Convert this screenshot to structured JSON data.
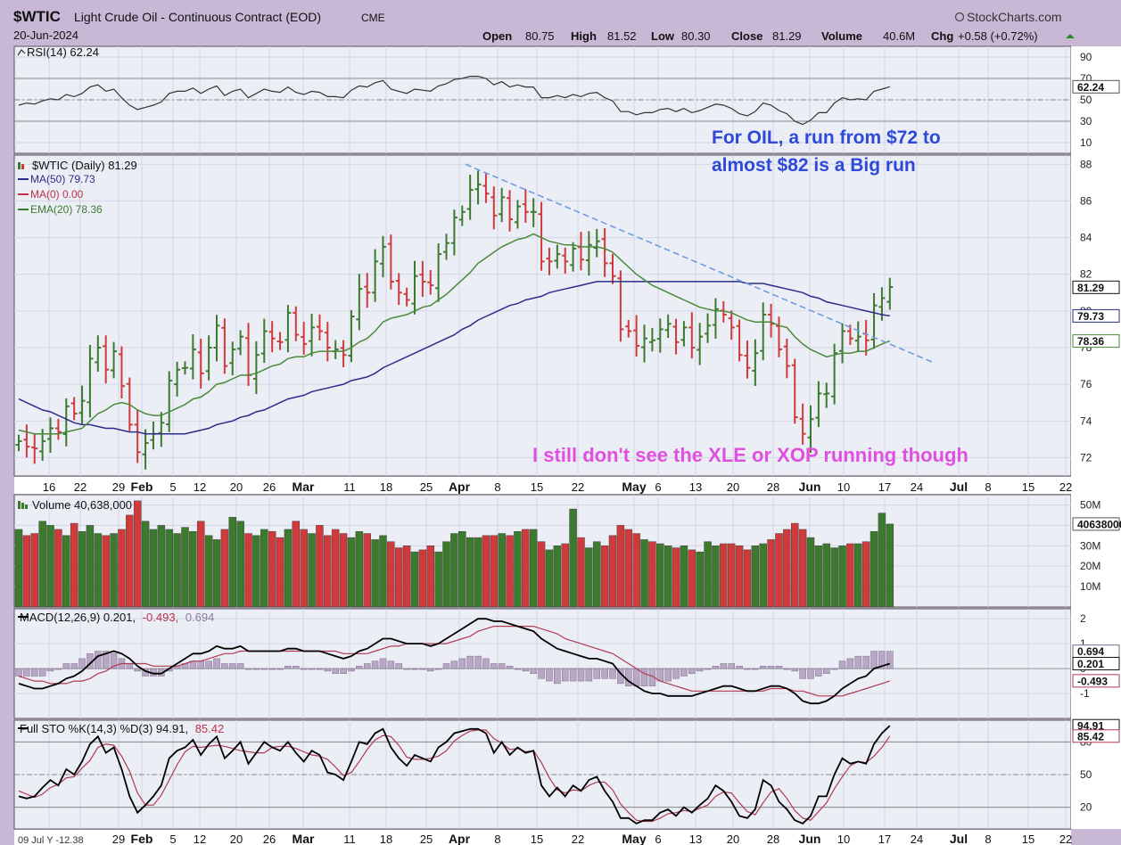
{
  "header": {
    "symbol": "$WTIC",
    "description": "Light Crude Oil - Continuous Contract (EOD)",
    "exchange": "CME",
    "date": "20-Jun-2024",
    "brand": "StockCharts.com",
    "open_label": "Open",
    "open": "80.75",
    "high_label": "High",
    "high": "81.52",
    "low_label": "Low",
    "low": "80.30",
    "close_label": "Close",
    "close": "81.29",
    "volume_label": "Volume",
    "volume": "40.6M",
    "chg_label": "Chg",
    "chg": "+0.58 (+0.72%)"
  },
  "colors": {
    "up": "#3c7a2e",
    "down": "#d03a3a",
    "ma50": "#2a2e8a",
    "ema20": "#4a8a3a",
    "rsi": "#333333",
    "macd": "#000000",
    "signal": "#b03a50",
    "hist": "#b8a8c6",
    "trend": "#6f9be0",
    "annot1": "#2e48d8",
    "annot2": "#e050e0",
    "frame": "#c9b7d6"
  },
  "annotations": {
    "line1": "For OIL, a run from $72 to",
    "line2": "almost $82 is a Big run",
    "line3": "I still don't see the XLE or XOP running though"
  },
  "panels": {
    "rsi": {
      "label": "RSI(14) 62.24",
      "ticks": [
        "90",
        "70",
        "50",
        "30",
        "10"
      ],
      "last": "62.24"
    },
    "price": {
      "label": "$WTIC (Daily) 81.29",
      "legend": [
        "MA(50) 79.73",
        "MA(0) 0.00",
        "EMA(20) 78.36"
      ],
      "ticks": [
        "88",
        "86",
        "84",
        "82",
        "80",
        "78",
        "76",
        "74",
        "72"
      ],
      "last_close": "81.29",
      "last_ma50": "79.73",
      "last_ema20": "78.36"
    },
    "volume": {
      "label": "Volume 40,638,000",
      "ticks": [
        "50M",
        "40M",
        "30M",
        "20M",
        "10M"
      ],
      "last": "40638000"
    },
    "macd": {
      "label_main": "MACD(12,26,9) 0.201,",
      "label_signal": "-0.493,",
      "label_hist": "0.694",
      "ticks": [
        "2",
        "1",
        "0",
        "-1"
      ],
      "last_hist": "0.694",
      "last_macd": "0.201",
      "last_signal": "-0.493"
    },
    "sto": {
      "label_main": "Full STO %K(14,3) %D(3) 94.91,",
      "label_d": "85.42",
      "ticks": [
        "80",
        "50",
        "20"
      ],
      "last_k": "94.91",
      "last_d": "85.42"
    }
  },
  "xaxis": {
    "labels": [
      "16",
      "22",
      "29",
      "Feb",
      "5",
      "12",
      "20",
      "26",
      "Mar",
      "11",
      "18",
      "25",
      "Apr",
      "8",
      "15",
      "22",
      "May",
      "6",
      "13",
      "20",
      "28",
      "Jun",
      "10",
      "17",
      "24",
      "Jul",
      "8",
      "15",
      "22"
    ],
    "bottom_left": "09 Jul Y -12.38"
  },
  "chart_data": {
    "type": "candlestick-ohlc",
    "symbol": "$WTIC",
    "price_ylim": [
      71,
      88.5
    ],
    "rsi_ylim": [
      0,
      100
    ],
    "macd_ylim": [
      -2,
      2.4
    ],
    "sto_ylim": [
      0,
      100
    ],
    "volume_ylim_millions": [
      0,
      55
    ],
    "x": [
      "01-11",
      "01-12",
      "01-16",
      "01-17",
      "01-18",
      "01-19",
      "01-22",
      "01-23",
      "01-24",
      "01-25",
      "01-26",
      "01-29",
      "01-30",
      "01-31",
      "02-01",
      "02-02",
      "02-05",
      "02-06",
      "02-07",
      "02-08",
      "02-09",
      "02-12",
      "02-13",
      "02-14",
      "02-15",
      "02-16",
      "02-20",
      "02-21",
      "02-22",
      "02-23",
      "02-26",
      "02-27",
      "02-28",
      "02-29",
      "03-01",
      "03-04",
      "03-05",
      "03-06",
      "03-07",
      "03-08",
      "03-11",
      "03-12",
      "03-13",
      "03-14",
      "03-15",
      "03-18",
      "03-19",
      "03-20",
      "03-21",
      "03-22",
      "03-25",
      "03-26",
      "03-27",
      "03-28",
      "04-01",
      "04-02",
      "04-03",
      "04-04",
      "04-05",
      "04-08",
      "04-09",
      "04-10",
      "04-11",
      "04-12",
      "04-15",
      "04-16",
      "04-17",
      "04-18",
      "04-19",
      "04-22",
      "04-23",
      "04-24",
      "04-25",
      "04-26",
      "04-29",
      "04-30",
      "05-01",
      "05-02",
      "05-03",
      "05-06",
      "05-07",
      "05-08",
      "05-09",
      "05-10",
      "05-13",
      "05-14",
      "05-15",
      "05-16",
      "05-17",
      "05-20",
      "05-21",
      "05-22",
      "05-23",
      "05-24",
      "05-28",
      "05-29",
      "05-30",
      "05-31",
      "06-03",
      "06-04",
      "06-05",
      "06-06",
      "06-07",
      "06-10",
      "06-11",
      "06-12",
      "06-13",
      "06-14",
      "06-17",
      "06-18",
      "06-20"
    ],
    "close": [
      72.9,
      72.6,
      72.5,
      72.9,
      73.6,
      73.4,
      74.8,
      74.4,
      75.1,
      77.4,
      78.0,
      76.8,
      77.8,
      75.9,
      73.8,
      72.3,
      72.8,
      73.3,
      73.9,
      76.2,
      76.8,
      76.9,
      77.9,
      76.6,
      78.0,
      79.2,
      77.0,
      77.9,
      78.6,
      76.5,
      77.6,
      78.9,
      78.5,
      78.3,
      79.9,
      78.7,
      78.2,
      79.1,
      78.9,
      78.0,
      77.9,
      77.6,
      79.7,
      81.2,
      81.0,
      82.7,
      83.5,
      81.6,
      81.0,
      80.6,
      81.9,
      81.6,
      81.4,
      83.1,
      83.7,
      85.1,
      85.4,
      86.6,
      86.9,
      86.4,
      85.2,
      86.2,
      85.0,
      85.7,
      85.4,
      85.4,
      82.7,
      82.7,
      83.1,
      82.7,
      83.4,
      82.8,
      83.6,
      83.8,
      82.6,
      81.9,
      79.0,
      78.9,
      78.1,
      78.5,
      78.4,
      79.0,
      79.3,
      78.3,
      79.1,
      78.0,
      78.6,
      79.2,
      80.1,
      79.8,
      79.1,
      77.6,
      76.9,
      77.7,
      79.8,
      79.3,
      77.9,
      77.0,
      74.2,
      73.3,
      74.1,
      75.5,
      75.5,
      77.7,
      78.9,
      78.5,
      78.6,
      78.4,
      80.3,
      80.7,
      81.3
    ],
    "ma50": [
      75.2,
      75.0,
      74.8,
      74.6,
      74.5,
      74.3,
      74.1,
      73.9,
      73.8,
      73.8,
      73.7,
      73.6,
      73.6,
      73.5,
      73.4,
      73.4,
      73.3,
      73.3,
      73.3,
      73.3,
      73.3,
      73.3,
      73.4,
      73.5,
      73.6,
      73.8,
      73.9,
      74.0,
      74.2,
      74.3,
      74.5,
      74.6,
      74.8,
      75.0,
      75.2,
      75.3,
      75.4,
      75.6,
      75.7,
      75.8,
      75.9,
      76.0,
      76.2,
      76.3,
      76.4,
      76.6,
      76.9,
      77.1,
      77.3,
      77.5,
      77.7,
      77.9,
      78.1,
      78.3,
      78.5,
      78.7,
      79.0,
      79.2,
      79.5,
      79.7,
      79.9,
      80.1,
      80.3,
      80.4,
      80.6,
      80.7,
      80.8,
      81.0,
      81.1,
      81.2,
      81.3,
      81.4,
      81.5,
      81.6,
      81.6,
      81.6,
      81.6,
      81.6,
      81.6,
      81.6,
      81.6,
      81.6,
      81.6,
      81.6,
      81.6,
      81.6,
      81.6,
      81.6,
      81.6,
      81.6,
      81.6,
      81.6,
      81.5,
      81.5,
      81.5,
      81.4,
      81.3,
      81.2,
      81.1,
      81.0,
      80.8,
      80.7,
      80.5,
      80.4,
      80.3,
      80.2,
      80.1,
      80.0,
      79.9,
      79.8,
      79.73
    ],
    "ema20": [
      73.5,
      73.4,
      73.3,
      73.3,
      73.3,
      73.3,
      73.4,
      73.5,
      73.6,
      74.0,
      74.4,
      74.6,
      74.9,
      75.0,
      74.9,
      74.6,
      74.4,
      74.3,
      74.3,
      74.5,
      74.7,
      74.9,
      75.2,
      75.3,
      75.6,
      76.0,
      76.1,
      76.3,
      76.5,
      76.5,
      76.6,
      76.8,
      77.0,
      77.1,
      77.4,
      77.5,
      77.5,
      77.7,
      77.8,
      77.8,
      77.8,
      77.8,
      78.0,
      78.3,
      78.5,
      78.9,
      79.4,
      79.6,
      79.7,
      79.8,
      80.0,
      80.2,
      80.3,
      80.6,
      80.9,
      81.3,
      81.7,
      82.1,
      82.6,
      82.9,
      83.2,
      83.5,
      83.7,
      83.9,
      84.0,
      84.2,
      84.0,
      83.8,
      83.7,
      83.6,
      83.6,
      83.5,
      83.5,
      83.5,
      83.4,
      83.2,
      82.8,
      82.4,
      82.0,
      81.7,
      81.4,
      81.2,
      81.0,
      80.8,
      80.6,
      80.4,
      80.2,
      80.1,
      80.0,
      80.0,
      79.9,
      79.7,
      79.5,
      79.4,
      79.4,
      79.4,
      79.2,
      79.1,
      78.6,
      78.2,
      77.9,
      77.7,
      77.5,
      77.6,
      77.7,
      77.7,
      77.8,
      77.8,
      78.0,
      78.2,
      78.36
    ],
    "rsi": [
      45,
      47,
      46,
      49,
      51,
      50,
      55,
      53,
      56,
      62,
      64,
      58,
      60,
      52,
      45,
      41,
      43,
      45,
      48,
      56,
      58,
      58,
      61,
      56,
      60,
      63,
      54,
      58,
      60,
      52,
      56,
      60,
      58,
      57,
      62,
      57,
      55,
      58,
      57,
      53,
      53,
      52,
      59,
      63,
      62,
      66,
      68,
      60,
      58,
      56,
      60,
      59,
      58,
      63,
      65,
      69,
      70,
      72,
      72,
      70,
      64,
      67,
      62,
      64,
      62,
      62,
      52,
      52,
      54,
      52,
      55,
      53,
      56,
      57,
      52,
      49,
      39,
      39,
      36,
      38,
      38,
      41,
      42,
      39,
      42,
      38,
      40,
      43,
      46,
      45,
      42,
      37,
      35,
      39,
      47,
      45,
      40,
      37,
      30,
      27,
      31,
      38,
      38,
      47,
      52,
      50,
      51,
      50,
      58,
      60,
      62.24
    ],
    "macd": [
      -0.6,
      -0.7,
      -0.8,
      -0.8,
      -0.7,
      -0.6,
      -0.4,
      -0.3,
      -0.1,
      0.2,
      0.5,
      0.6,
      0.7,
      0.6,
      0.4,
      0.1,
      -0.1,
      -0.2,
      -0.2,
      0.0,
      0.2,
      0.4,
      0.6,
      0.6,
      0.7,
      0.9,
      0.8,
      0.8,
      0.9,
      0.7,
      0.7,
      0.7,
      0.7,
      0.7,
      0.8,
      0.8,
      0.7,
      0.7,
      0.7,
      0.6,
      0.5,
      0.4,
      0.5,
      0.7,
      0.8,
      1.0,
      1.2,
      1.2,
      1.1,
      1.0,
      1.0,
      1.0,
      0.9,
      1.0,
      1.2,
      1.4,
      1.6,
      1.8,
      2.0,
      2.0,
      1.9,
      1.9,
      1.8,
      1.7,
      1.6,
      1.5,
      1.2,
      1.0,
      0.8,
      0.7,
      0.6,
      0.5,
      0.4,
      0.4,
      0.3,
      0.2,
      -0.2,
      -0.5,
      -0.7,
      -0.9,
      -1.0,
      -1.0,
      -1.1,
      -1.1,
      -1.1,
      -1.1,
      -1.0,
      -0.9,
      -0.8,
      -0.7,
      -0.7,
      -0.8,
      -0.9,
      -0.9,
      -0.8,
      -0.7,
      -0.7,
      -0.8,
      -1.0,
      -1.3,
      -1.4,
      -1.4,
      -1.3,
      -1.1,
      -0.8,
      -0.6,
      -0.4,
      -0.3,
      -0.0,
      0.1,
      0.201
    ],
    "macd_signal": [
      -0.3,
      -0.4,
      -0.5,
      -0.5,
      -0.6,
      -0.6,
      -0.6,
      -0.5,
      -0.5,
      -0.4,
      -0.2,
      -0.1,
      0.1,
      0.2,
      0.2,
      0.2,
      0.2,
      0.1,
      0.1,
      0.1,
      0.1,
      0.2,
      0.3,
      0.3,
      0.4,
      0.5,
      0.6,
      0.6,
      0.7,
      0.7,
      0.7,
      0.7,
      0.7,
      0.7,
      0.7,
      0.7,
      0.7,
      0.7,
      0.7,
      0.7,
      0.7,
      0.6,
      0.6,
      0.6,
      0.6,
      0.7,
      0.8,
      0.9,
      0.9,
      1.0,
      1.0,
      1.0,
      1.0,
      1.0,
      1.0,
      1.1,
      1.2,
      1.3,
      1.5,
      1.6,
      1.7,
      1.7,
      1.7,
      1.7,
      1.7,
      1.7,
      1.6,
      1.5,
      1.4,
      1.2,
      1.1,
      1.0,
      0.9,
      0.8,
      0.7,
      0.6,
      0.4,
      0.2,
      0.0,
      -0.2,
      -0.3,
      -0.5,
      -0.6,
      -0.7,
      -0.8,
      -0.9,
      -0.9,
      -0.9,
      -0.9,
      -0.9,
      -0.9,
      -0.9,
      -0.9,
      -0.9,
      -0.9,
      -0.8,
      -0.8,
      -0.8,
      -0.9,
      -0.9,
      -1.0,
      -1.1,
      -1.1,
      -1.1,
      -1.1,
      -1.0,
      -0.9,
      -0.8,
      -0.7,
      -0.6,
      -0.493
    ],
    "sto_k": [
      30,
      28,
      30,
      38,
      45,
      40,
      55,
      50,
      62,
      78,
      85,
      70,
      75,
      55,
      30,
      15,
      22,
      30,
      40,
      65,
      72,
      75,
      82,
      68,
      78,
      85,
      65,
      72,
      80,
      60,
      70,
      80,
      75,
      72,
      80,
      70,
      62,
      72,
      68,
      52,
      50,
      45,
      62,
      80,
      78,
      88,
      92,
      75,
      65,
      58,
      68,
      65,
      62,
      75,
      80,
      88,
      90,
      92,
      92,
      88,
      70,
      80,
      68,
      75,
      70,
      72,
      40,
      30,
      38,
      30,
      40,
      35,
      45,
      48,
      35,
      25,
      10,
      10,
      5,
      8,
      8,
      15,
      18,
      12,
      20,
      15,
      22,
      28,
      40,
      35,
      25,
      12,
      10,
      18,
      45,
      40,
      25,
      18,
      8,
      5,
      12,
      30,
      30,
      50,
      65,
      60,
      62,
      60,
      78,
      88,
      94.91
    ],
    "sto_d": [
      35,
      32,
      29,
      32,
      38,
      41,
      47,
      48,
      56,
      63,
      75,
      78,
      77,
      67,
      53,
      33,
      22,
      22,
      31,
      45,
      59,
      71,
      76,
      75,
      76,
      77,
      76,
      74,
      72,
      71,
      70,
      70,
      75,
      76,
      76,
      74,
      71,
      68,
      67,
      64,
      57,
      49,
      52,
      62,
      73,
      82,
      86,
      85,
      77,
      66,
      64,
      64,
      65,
      67,
      72,
      81,
      86,
      90,
      91,
      91,
      83,
      79,
      73,
      74,
      71,
      72,
      61,
      47,
      36,
      33,
      36,
      35,
      40,
      43,
      43,
      36,
      23,
      15,
      8,
      7,
      7,
      10,
      14,
      15,
      17,
      16,
      19,
      22,
      30,
      34,
      33,
      24,
      16,
      13,
      24,
      34,
      37,
      28,
      17,
      10,
      8,
      16,
      24,
      37,
      48,
      58,
      62,
      61,
      67,
      75,
      85.42
    ],
    "volume_millions": [
      38,
      35,
      36,
      42,
      40,
      38,
      35,
      41,
      37,
      40,
      36,
      35,
      36,
      38,
      45,
      52,
      42,
      38,
      40,
      38,
      36,
      39,
      37,
      42,
      35,
      33,
      38,
      44,
      42,
      36,
      35,
      38,
      37,
      34,
      38,
      42,
      38,
      36,
      40,
      35,
      38,
      36,
      34,
      37,
      36,
      33,
      35,
      32,
      29,
      30,
      27,
      28,
      30,
      27,
      32,
      36,
      37,
      34,
      34,
      35,
      35,
      36,
      35,
      37,
      38,
      38,
      32,
      28,
      30,
      31,
      48,
      34,
      29,
      32,
      30,
      35,
      40,
      38,
      36,
      33,
      32,
      31,
      30,
      29,
      30,
      28,
      27,
      32,
      30,
      31,
      31,
      30,
      28,
      30,
      31,
      33,
      36,
      38,
      41,
      38,
      34,
      30,
      31,
      29,
      30,
      31,
      31,
      32,
      37,
      46,
      40.638
    ]
  }
}
